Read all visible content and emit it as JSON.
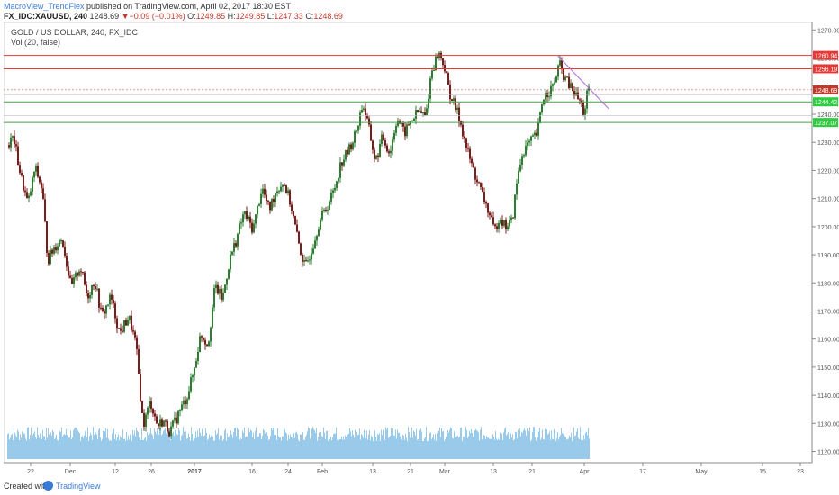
{
  "header": {
    "author": "MacroView_TrendFlex",
    "published_text": " published on TradingView.com, April 02, 2017 18:30 EST",
    "symbol": "FX_IDC:XAUUSD, 240",
    "last": "1248.69",
    "change_arrow": "▼",
    "change": "−0.09 (−0.01%)",
    "o_label": "O:",
    "o_val": "1249.85",
    "h_label": "H:",
    "h_val": "1249.85",
    "l_label": "L:",
    "l_val": "1247.33",
    "c_label": "C:",
    "c_val": "1248.69"
  },
  "legend": {
    "title": "GOLD / US DOLLAR, 240, FX_IDC",
    "volume": "Vol (20, false)"
  },
  "footer": {
    "created_with": "Created with",
    "brand": "TradingView",
    "logo_icon": "tradingview-logo-icon"
  },
  "colors": {
    "up": "#2e7d32",
    "down": "#7b1c1c",
    "red_line": "#e53935",
    "green_line": "#43a047",
    "trend_line": "#b46cd6",
    "volume": "#8fc4e8",
    "last_price_tag": "#c0392b",
    "green_tag": "#2ecc40"
  },
  "chart_data": {
    "type": "candlestick",
    "title": "GOLD / US DOLLAR, 240, FX_IDC",
    "price_axis": {
      "ylim": [
        1116,
        1273
      ],
      "ticks": [
        1120,
        1130,
        1140,
        1150,
        1160,
        1170,
        1180,
        1190,
        1200,
        1210,
        1220,
        1230,
        1240,
        1250,
        1260,
        1270
      ],
      "labels": [
        "1120.00",
        "1130.00",
        "1140.00",
        "1150.00",
        "1160.00",
        "1170.00",
        "1180.00",
        "1190.00",
        "1200.00",
        "1210.00",
        "1220.00",
        "1230.00",
        "1240.00",
        "1250.00",
        "1260.00",
        "1270.00"
      ]
    },
    "time_axis": {
      "labels": [
        "22",
        "Dec",
        "12",
        "26",
        "2017",
        "16",
        "24",
        "Feb",
        "13",
        "21",
        "Mar",
        "13",
        "21",
        "Apr",
        "17",
        "May",
        "15",
        "23"
      ],
      "bold": [
        "2017"
      ]
    },
    "price_path": {
      "note": "approximate close path sampled at bar indices (bar, price)",
      "points": [
        [
          0,
          1229
        ],
        [
          6,
          1232
        ],
        [
          14,
          1218
        ],
        [
          22,
          1208
        ],
        [
          30,
          1221
        ],
        [
          38,
          1213
        ],
        [
          44,
          1188
        ],
        [
          52,
          1193
        ],
        [
          60,
          1196
        ],
        [
          70,
          1178
        ],
        [
          80,
          1186
        ],
        [
          88,
          1175
        ],
        [
          96,
          1181
        ],
        [
          104,
          1168
        ],
        [
          114,
          1175
        ],
        [
          124,
          1162
        ],
        [
          134,
          1168
        ],
        [
          142,
          1158
        ],
        [
          150,
          1129
        ],
        [
          158,
          1138
        ],
        [
          166,
          1129
        ],
        [
          172,
          1131
        ],
        [
          180,
          1127
        ],
        [
          190,
          1134
        ],
        [
          198,
          1139
        ],
        [
          206,
          1148
        ],
        [
          214,
          1162
        ],
        [
          222,
          1158
        ],
        [
          230,
          1179
        ],
        [
          238,
          1174
        ],
        [
          246,
          1188
        ],
        [
          254,
          1196
        ],
        [
          262,
          1205
        ],
        [
          272,
          1199
        ],
        [
          282,
          1214
        ],
        [
          290,
          1206
        ],
        [
          298,
          1213
        ],
        [
          306,
          1216
        ],
        [
          314,
          1208
        ],
        [
          322,
          1195
        ],
        [
          330,
          1185
        ],
        [
          338,
          1193
        ],
        [
          346,
          1202
        ],
        [
          354,
          1207
        ],
        [
          362,
          1213
        ],
        [
          370,
          1223
        ],
        [
          378,
          1227
        ],
        [
          386,
          1233
        ],
        [
          394,
          1244
        ],
        [
          400,
          1236
        ],
        [
          408,
          1223
        ],
        [
          416,
          1232
        ],
        [
          424,
          1226
        ],
        [
          432,
          1239
        ],
        [
          440,
          1233
        ],
        [
          448,
          1238
        ],
        [
          456,
          1241
        ],
        [
          464,
          1239
        ],
        [
          470,
          1255
        ],
        [
          478,
          1262
        ],
        [
          484,
          1258
        ],
        [
          490,
          1248
        ],
        [
          496,
          1243
        ],
        [
          502,
          1238
        ],
        [
          510,
          1227
        ],
        [
          518,
          1219
        ],
        [
          526,
          1212
        ],
        [
          534,
          1205
        ],
        [
          540,
          1198
        ],
        [
          546,
          1204
        ],
        [
          552,
          1200
        ],
        [
          560,
          1202
        ],
        [
          566,
          1218
        ],
        [
          572,
          1227
        ],
        [
          580,
          1230
        ],
        [
          588,
          1233
        ],
        [
          594,
          1246
        ],
        [
          600,
          1248
        ],
        [
          606,
          1250
        ],
        [
          612,
          1258
        ],
        [
          618,
          1253
        ],
        [
          624,
          1250
        ],
        [
          630,
          1247
        ],
        [
          636,
          1244
        ],
        [
          640,
          1240
        ],
        [
          643,
          1247
        ],
        [
          646,
          1248.69
        ]
      ]
    },
    "horizontal_levels": [
      {
        "price": 1260.94,
        "color": "red",
        "label": "1260.94"
      },
      {
        "price": 1256.19,
        "color": "red",
        "label": "1256.19"
      },
      {
        "price": 1248.69,
        "color": "last",
        "label": "1248.69"
      },
      {
        "price": 1247.0,
        "color": "gray",
        "label": "1247.0"
      },
      {
        "price": 1239.51,
        "color": "gray",
        "label": "1239.51"
      },
      {
        "price": 1244.42,
        "color": "green",
        "label": "1244.42"
      },
      {
        "price": 1237.07,
        "color": "green",
        "label": "1237.07"
      }
    ],
    "trend_line": {
      "from": [
        611,
        1261
      ],
      "to": [
        668,
        1242
      ]
    },
    "volume": {
      "name": "Vol (20, false)",
      "relative_level": 0.6
    }
  }
}
